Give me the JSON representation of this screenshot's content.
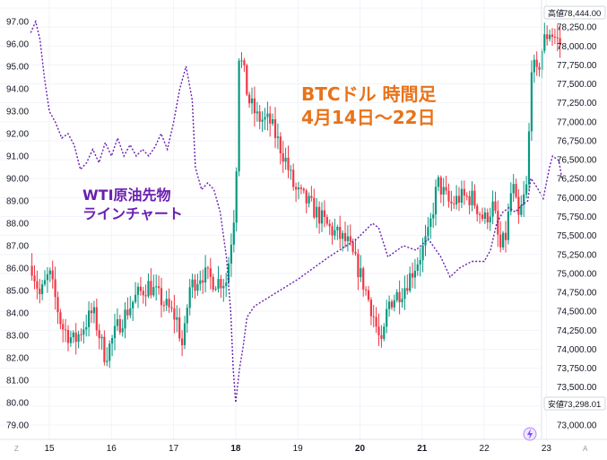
{
  "chart_data": {
    "type": "candlestick+line",
    "annotations": {
      "btc_title_line1": "BTCドル 時間足",
      "btc_title_line2": "4月14日～22日",
      "wti_title_line1": "WTI原油先物",
      "wti_title_line2": "ラインチャート"
    },
    "x_axis": {
      "ticks": [
        "15",
        "16",
        "17",
        "18",
        "19",
        "20",
        "21",
        "22",
        "23"
      ],
      "bold_ticks": [
        "18",
        "20",
        "21"
      ],
      "corner_left": "Z",
      "corner_right": "A"
    },
    "left_axis": {
      "series": "WTI原油先物",
      "ylim": [
        79.0,
        97.0
      ],
      "ticks": [
        "97.00",
        "96.00",
        "95.00",
        "94.00",
        "93.00",
        "92.00",
        "91.00",
        "90.00",
        "89.00",
        "88.00",
        "87.00",
        "86.00",
        "85.00",
        "84.00",
        "83.00",
        "82.00",
        "81.00",
        "80.00",
        "79.00"
      ]
    },
    "right_axis": {
      "series": "BTCドル",
      "ylim": [
        73000,
        78500
      ],
      "ticks": [
        "78,500.00",
        "78,250.00",
        "78,000.00",
        "77,750.00",
        "77,500.00",
        "77,250.00",
        "77,000.00",
        "76,750.00",
        "76,500.00",
        "76,250.00",
        "76,000.00",
        "75,750.00",
        "75,500.00",
        "75,250.00",
        "75,000.00",
        "74,750.00",
        "74,500.00",
        "74,250.00",
        "74,000.00",
        "73,750.00",
        "73,500.00",
        "73,250.00",
        "73,000.00"
      ],
      "high_label": "高値",
      "high_value": "78,444.00",
      "low_label": "安値",
      "low_value": "73,298.01"
    },
    "wti_line": {
      "name": "WTI原油先物",
      "color": "#6a1fb0",
      "style": "dotted",
      "points": [
        [
          14.7,
          96.5
        ],
        [
          14.78,
          97.0
        ],
        [
          14.85,
          96.2
        ],
        [
          14.92,
          94.5
        ],
        [
          15.0,
          93.0
        ],
        [
          15.1,
          92.5
        ],
        [
          15.2,
          91.8
        ],
        [
          15.3,
          92.0
        ],
        [
          15.4,
          91.5
        ],
        [
          15.5,
          90.4
        ],
        [
          15.6,
          90.7
        ],
        [
          15.7,
          91.3
        ],
        [
          15.8,
          90.7
        ],
        [
          15.9,
          91.6
        ],
        [
          16.0,
          91.0
        ],
        [
          16.1,
          91.8
        ],
        [
          16.2,
          91.0
        ],
        [
          16.3,
          91.5
        ],
        [
          16.4,
          91.0
        ],
        [
          16.5,
          91.3
        ],
        [
          16.6,
          91.0
        ],
        [
          16.7,
          91.4
        ],
        [
          16.8,
          92.0
        ],
        [
          16.9,
          91.3
        ],
        [
          17.0,
          92.5
        ],
        [
          17.1,
          94.0
        ],
        [
          17.2,
          95.0
        ],
        [
          17.3,
          93.5
        ],
        [
          17.35,
          90.5
        ],
        [
          17.45,
          89.5
        ],
        [
          17.55,
          89.8
        ],
        [
          17.65,
          89.5
        ],
        [
          17.75,
          88.5
        ],
        [
          17.85,
          86.5
        ],
        [
          17.92,
          84.0
        ],
        [
          17.96,
          81.5
        ],
        [
          18.0,
          80.0
        ],
        [
          18.06,
          81.5
        ],
        [
          18.12,
          82.5
        ],
        [
          18.18,
          83.8
        ],
        [
          18.3,
          84.3
        ],
        [
          19.0,
          85.5
        ],
        [
          19.5,
          86.5
        ],
        [
          19.95,
          87.3
        ],
        [
          20.2,
          88.0
        ],
        [
          20.3,
          87.8
        ],
        [
          20.45,
          86.5
        ],
        [
          20.7,
          87.0
        ],
        [
          20.9,
          86.8
        ],
        [
          21.1,
          87.3
        ],
        [
          21.3,
          86.5
        ],
        [
          21.45,
          85.6
        ],
        [
          21.6,
          86.0
        ],
        [
          21.8,
          86.3
        ],
        [
          22.0,
          86.3
        ],
        [
          22.1,
          86.8
        ],
        [
          22.2,
          88.0
        ],
        [
          22.3,
          88.5
        ],
        [
          22.4,
          88.7
        ],
        [
          22.5,
          88.5
        ],
        [
          22.6,
          88.8
        ],
        [
          22.7,
          89.0
        ],
        [
          22.75,
          90.0
        ],
        [
          22.85,
          89.6
        ],
        [
          22.95,
          89.1
        ],
        [
          23.05,
          90.5
        ],
        [
          23.1,
          91.0
        ],
        [
          23.2,
          90.8
        ],
        [
          23.25,
          90.0
        ]
      ]
    },
    "btc_candles": {
      "name": "BTCドル",
      "up_color": "#089981",
      "down_color": "#f23645"
    }
  }
}
